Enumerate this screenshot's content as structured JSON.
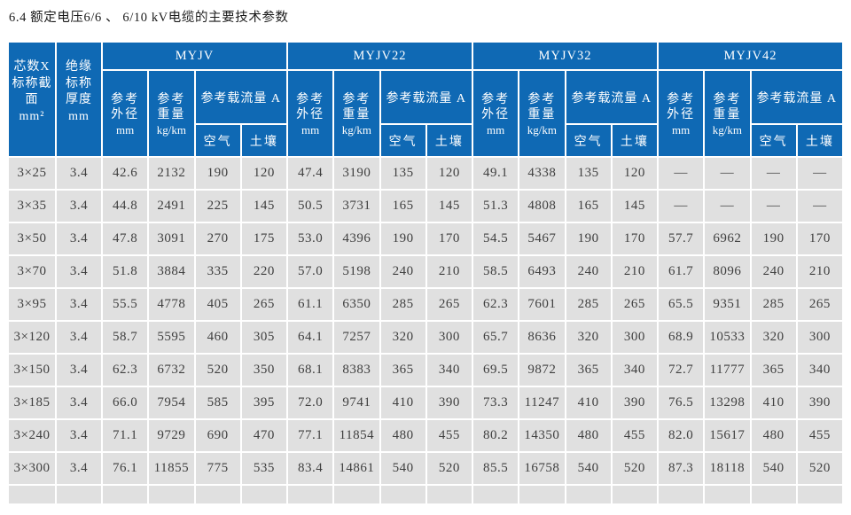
{
  "page": {
    "title": "6.4 额定电压6/6 、 6/10 kV电缆的主要技术参数"
  },
  "colors": {
    "header_bg": "#0f69b4",
    "header_text": "#ffffff",
    "row_bg": "#e0e0e0",
    "body_text": "#3f3f3f",
    "grid": "#ffffff"
  },
  "table": {
    "corner": {
      "spec": "芯数X\n标称截\n面\nmm²",
      "thickness": "绝缘\n标称\n厚度\nmm"
    },
    "groups": [
      "MYJV",
      "MYJV22",
      "MYJV32",
      "MYJV42"
    ],
    "sub": {
      "od": "参考\n外径",
      "od_unit": "mm",
      "weight": "参考\n重量",
      "weight_unit": "kg/km",
      "ampacity": "参考载流量 A",
      "air": "空气",
      "soil": "土壤"
    },
    "rows": [
      {
        "spec": "3×25",
        "thickness": "3.4",
        "values": [
          [
            "42.6",
            "2132",
            "190",
            "120"
          ],
          [
            "47.4",
            "3190",
            "135",
            "120"
          ],
          [
            "49.1",
            "4338",
            "135",
            "120"
          ],
          [
            "—",
            "—",
            "—",
            "—"
          ]
        ]
      },
      {
        "spec": "3×35",
        "thickness": "3.4",
        "values": [
          [
            "44.8",
            "2491",
            "225",
            "145"
          ],
          [
            "50.5",
            "3731",
            "165",
            "145"
          ],
          [
            "51.3",
            "4808",
            "165",
            "145"
          ],
          [
            "—",
            "—",
            "—",
            "—"
          ]
        ]
      },
      {
        "spec": "3×50",
        "thickness": "3.4",
        "values": [
          [
            "47.8",
            "3091",
            "270",
            "175"
          ],
          [
            "53.0",
            "4396",
            "190",
            "170"
          ],
          [
            "54.5",
            "5467",
            "190",
            "170"
          ],
          [
            "57.7",
            "6962",
            "190",
            "170"
          ]
        ]
      },
      {
        "spec": "3×70",
        "thickness": "3.4",
        "values": [
          [
            "51.8",
            "3884",
            "335",
            "220"
          ],
          [
            "57.0",
            "5198",
            "240",
            "210"
          ],
          [
            "58.5",
            "6493",
            "240",
            "210"
          ],
          [
            "61.7",
            "8096",
            "240",
            "210"
          ]
        ]
      },
      {
        "spec": "3×95",
        "thickness": "3.4",
        "values": [
          [
            "55.5",
            "4778",
            "405",
            "265"
          ],
          [
            "61.1",
            "6350",
            "285",
            "265"
          ],
          [
            "62.3",
            "7601",
            "285",
            "265"
          ],
          [
            "65.5",
            "9351",
            "285",
            "265"
          ]
        ]
      },
      {
        "spec": "3×120",
        "thickness": "3.4",
        "values": [
          [
            "58.7",
            "5595",
            "460",
            "305"
          ],
          [
            "64.1",
            "7257",
            "320",
            "300"
          ],
          [
            "65.7",
            "8636",
            "320",
            "300"
          ],
          [
            "68.9",
            "10533",
            "320",
            "300"
          ]
        ]
      },
      {
        "spec": "3×150",
        "thickness": "3.4",
        "values": [
          [
            "62.3",
            "6732",
            "520",
            "350"
          ],
          [
            "68.1",
            "8383",
            "365",
            "340"
          ],
          [
            "69.5",
            "9872",
            "365",
            "340"
          ],
          [
            "72.7",
            "11777",
            "365",
            "340"
          ]
        ]
      },
      {
        "spec": "3×185",
        "thickness": "3.4",
        "values": [
          [
            "66.0",
            "7954",
            "585",
            "395"
          ],
          [
            "72.0",
            "9741",
            "410",
            "390"
          ],
          [
            "73.3",
            "11247",
            "410",
            "390"
          ],
          [
            "76.5",
            "13298",
            "410",
            "390"
          ]
        ]
      },
      {
        "spec": "3×240",
        "thickness": "3.4",
        "values": [
          [
            "71.1",
            "9729",
            "690",
            "470"
          ],
          [
            "77.1",
            "11854",
            "480",
            "455"
          ],
          [
            "80.2",
            "14350",
            "480",
            "455"
          ],
          [
            "82.0",
            "15617",
            "480",
            "455"
          ]
        ]
      },
      {
        "spec": "3×300",
        "thickness": "3.4",
        "values": [
          [
            "76.1",
            "11855",
            "775",
            "535"
          ],
          [
            "83.4",
            "14861",
            "540",
            "520"
          ],
          [
            "85.5",
            "16758",
            "540",
            "520"
          ],
          [
            "87.3",
            "18118",
            "540",
            "520"
          ]
        ]
      }
    ]
  }
}
